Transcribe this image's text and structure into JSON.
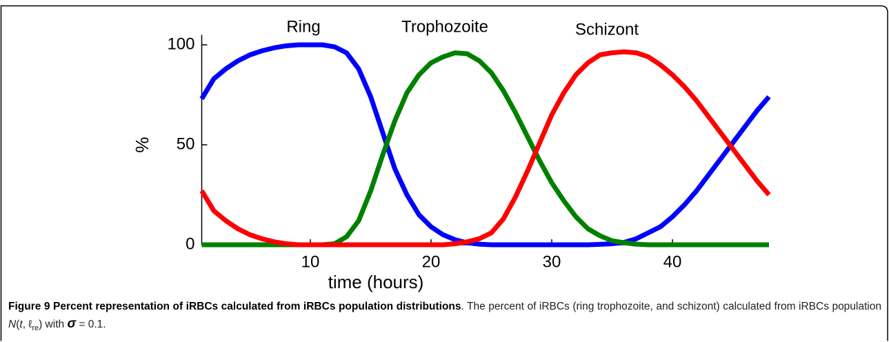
{
  "chart_data": {
    "type": "line",
    "x": [
      1,
      2,
      3,
      4,
      5,
      6,
      7,
      8,
      9,
      10,
      11,
      12,
      13,
      14,
      15,
      16,
      17,
      18,
      19,
      20,
      21,
      22,
      23,
      24,
      25,
      26,
      27,
      28,
      29,
      30,
      31,
      32,
      33,
      34,
      35,
      36,
      37,
      38,
      39,
      40,
      41,
      42,
      43,
      44,
      45,
      46,
      47,
      48
    ],
    "series": [
      {
        "name": "Ring",
        "color": "#0000ff",
        "values": [
          73,
          83,
          88,
          92,
          95,
          97,
          98.5,
          99.5,
          100,
          100,
          100,
          99,
          96,
          88,
          74,
          56,
          38,
          25,
          15,
          9,
          5,
          2.5,
          1,
          0.3,
          0,
          0,
          0,
          0,
          0,
          0,
          0,
          0,
          0,
          0.2,
          0.5,
          1.2,
          3,
          6,
          9,
          14,
          20,
          27,
          35,
          43,
          51,
          59,
          67,
          74
        ]
      },
      {
        "name": "Trophozoite",
        "color": "#008000",
        "values": [
          0,
          0,
          0,
          0,
          0,
          0,
          0,
          0,
          0,
          0,
          0,
          0.5,
          4,
          12,
          27,
          45,
          62,
          76,
          85,
          91,
          94,
          96,
          95.5,
          92,
          86,
          77,
          66,
          54,
          42,
          31,
          22,
          14,
          8,
          4.5,
          2,
          1,
          0.3,
          0,
          0,
          0,
          0,
          0,
          0,
          0,
          0,
          0,
          0,
          0
        ]
      },
      {
        "name": "Schizont",
        "color": "#ff0000",
        "values": [
          27,
          17,
          12,
          8,
          5,
          3,
          1.5,
          0.5,
          0,
          0,
          0,
          0,
          0,
          0,
          0,
          0,
          0,
          0,
          0,
          0,
          0,
          0.5,
          1.5,
          3,
          6,
          13,
          24,
          37,
          51,
          65,
          76,
          85,
          91,
          95,
          96,
          96.5,
          96,
          94,
          90,
          85,
          79,
          72,
          64,
          56,
          48,
          40,
          32,
          25
        ]
      }
    ],
    "xlabel": "time (hours)",
    "ylabel": "%",
    "xlim": [
      1,
      48
    ],
    "ylim": [
      0,
      105
    ],
    "xticks": [
      10,
      20,
      30,
      40
    ],
    "yticks": [
      0,
      50,
      100
    ],
    "grid": false
  },
  "caption": {
    "title": "Figure 9 Percent representation of iRBCs calculated from iRBCs population distributions",
    "parts": [
      ". The percent of iRBCs (ring trophozoite, and schizont) calculated from iRBCs population ",
      "N",
      "(",
      "t",
      ", ℓ",
      "re",
      ") with ",
      "σ",
      " = 0.1."
    ]
  }
}
